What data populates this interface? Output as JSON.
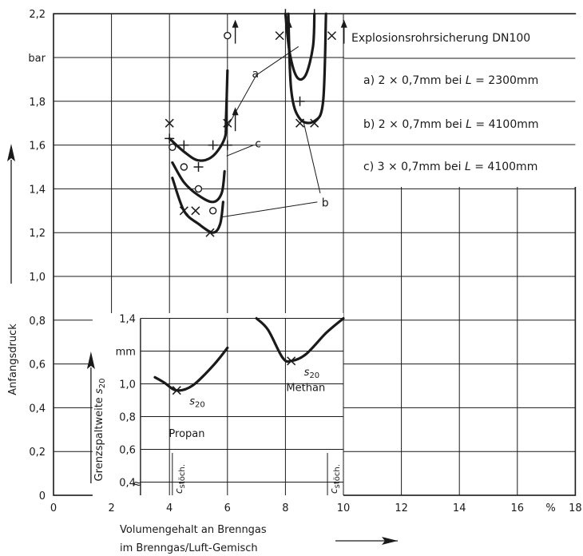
{
  "chart_data": [
    {
      "type": "line",
      "ylabel": "Anfangsdruck",
      "yunit": "bar",
      "xlabel_line1": "Volumengehalt an Brenngas",
      "xlabel_line2": "im Brenngas/Luft-Gemisch",
      "xunit": "%",
      "xlim": [
        0,
        18
      ],
      "ylim": [
        0,
        2.2
      ],
      "x_ticks": [
        "0",
        "2",
        "4",
        "6",
        "8",
        "10",
        "12",
        "14",
        "16",
        "18"
      ],
      "y_ticks": [
        "0",
        "0,2",
        "0,4",
        "0,6",
        "0,8",
        "1,0",
        "1,2",
        "1,4",
        "1,6",
        "1,8",
        "2,2"
      ],
      "grid": true,
      "legend": {
        "title": "Explosionsrohrsicherung DN100",
        "entries": [
          {
            "key": "a)",
            "text": "2 × 0,7mm bei",
            "var": "L",
            "value": "= 2300mm"
          },
          {
            "key": "b)",
            "text": "2 × 0,7mm bei",
            "var": "L",
            "value": "= 4100mm"
          },
          {
            "key": "c)",
            "text": "3 × 0,7mm bei",
            "var": "L",
            "value": "= 4100mm"
          }
        ]
      },
      "series": [
        {
          "name": "a",
          "marker": "circle",
          "curve": [
            [
              4.1,
              1.52
            ],
            [
              4.5,
              1.43
            ],
            [
              5.0,
              1.37
            ],
            [
              5.5,
              1.34
            ],
            [
              5.8,
              1.38
            ],
            [
              5.9,
              1.48
            ]
          ],
          "points": [
            [
              4.1,
              1.59
            ],
            [
              4.5,
              1.5
            ],
            [
              5.0,
              1.4
            ],
            [
              5.5,
              1.3
            ],
            [
              6.0,
              2.1
            ]
          ]
        },
        {
          "name": "b",
          "marker": "x",
          "curve": [
            [
              4.1,
              1.45
            ],
            [
              4.5,
              1.3
            ],
            [
              5.0,
              1.24
            ],
            [
              5.5,
              1.2
            ],
            [
              5.75,
              1.24
            ],
            [
              5.85,
              1.34
            ]
          ],
          "points": [
            [
              4.0,
              1.7
            ],
            [
              4.5,
              1.3
            ],
            [
              4.9,
              1.3
            ],
            [
              5.4,
              1.2
            ],
            [
              6.0,
              1.7
            ]
          ]
        },
        {
          "name": "b_methan",
          "marker": "x",
          "curve": [
            [
              8.1,
              2.2
            ],
            [
              8.2,
              1.85
            ],
            [
              8.5,
              1.72
            ],
            [
              9.0,
              1.71
            ],
            [
              9.3,
              1.8
            ],
            [
              9.4,
              2.2
            ]
          ],
          "points": [
            [
              7.8,
              2.1
            ],
            [
              8.5,
              1.7
            ],
            [
              9.0,
              1.7
            ],
            [
              9.6,
              2.1
            ]
          ]
        },
        {
          "name": "c",
          "marker": "plus",
          "curve": [
            [
              4.0,
              1.63
            ],
            [
              4.5,
              1.57
            ],
            [
              5.0,
              1.53
            ],
            [
              5.5,
              1.55
            ],
            [
              5.9,
              1.63
            ],
            [
              5.95,
              1.72
            ],
            [
              6.0,
              1.94
            ]
          ],
          "points": [
            [
              4.0,
              1.63
            ],
            [
              4.5,
              1.6
            ],
            [
              5.0,
              1.5
            ],
            [
              5.5,
              1.6
            ],
            [
              6.0,
              1.6
            ]
          ]
        },
        {
          "name": "c_methan",
          "marker": "plus",
          "curve": [
            [
              8.0,
              2.2
            ],
            [
              8.15,
              2.02
            ],
            [
              8.4,
              1.91
            ],
            [
              8.7,
              1.92
            ],
            [
              8.95,
              2.05
            ],
            [
              9.0,
              2.2
            ]
          ],
          "points": [
            [
              8.0,
              2.2
            ],
            [
              8.5,
              1.8
            ],
            [
              9.0,
              2.2
            ]
          ]
        }
      ],
      "arrows": [
        [
          6.05,
          2.1
        ],
        [
          6.05,
          1.7
        ],
        [
          7.9,
          2.1
        ],
        [
          9.8,
          2.1
        ]
      ],
      "curve_labels": [
        "a",
        "b",
        "c"
      ]
    },
    {
      "type": "line",
      "inset": true,
      "ylabel": "Grenzspaltweite",
      "ylabel_symbol": "s",
      "ylabel_sub": "20",
      "yunit": "mm",
      "ylim": [
        0.3,
        1.4
      ],
      "y_ticks": [
        "0,4",
        "0,6",
        "0,8",
        "1,0",
        "1,4"
      ],
      "series": [
        {
          "name": "Propan",
          "curve": [
            [
              3.5,
              1.04
            ],
            [
              3.8,
              1.01
            ],
            [
              4.25,
              0.96
            ],
            [
              4.8,
              0.99
            ],
            [
              5.5,
              1.11
            ],
            [
              6.0,
              1.22
            ]
          ],
          "point": [
            4.25,
            0.96
          ],
          "point_label": "s",
          "point_sub": "20"
        },
        {
          "name": "Methan",
          "curve": [
            [
              7.0,
              1.4
            ],
            [
              7.4,
              1.33
            ],
            [
              7.9,
              1.16
            ],
            [
              8.2,
              1.14
            ],
            [
              8.7,
              1.18
            ],
            [
              9.4,
              1.31
            ],
            [
              10.0,
              1.4
            ]
          ],
          "point": [
            8.2,
            1.14
          ],
          "point_label": "s",
          "point_sub": "20"
        }
      ],
      "stoich_marks": [
        {
          "x": 4.1,
          "label": "c",
          "sub": "stöch."
        },
        {
          "x": 9.45,
          "label": "c",
          "sub": "stöch."
        }
      ],
      "break_symbol": "≈"
    }
  ]
}
